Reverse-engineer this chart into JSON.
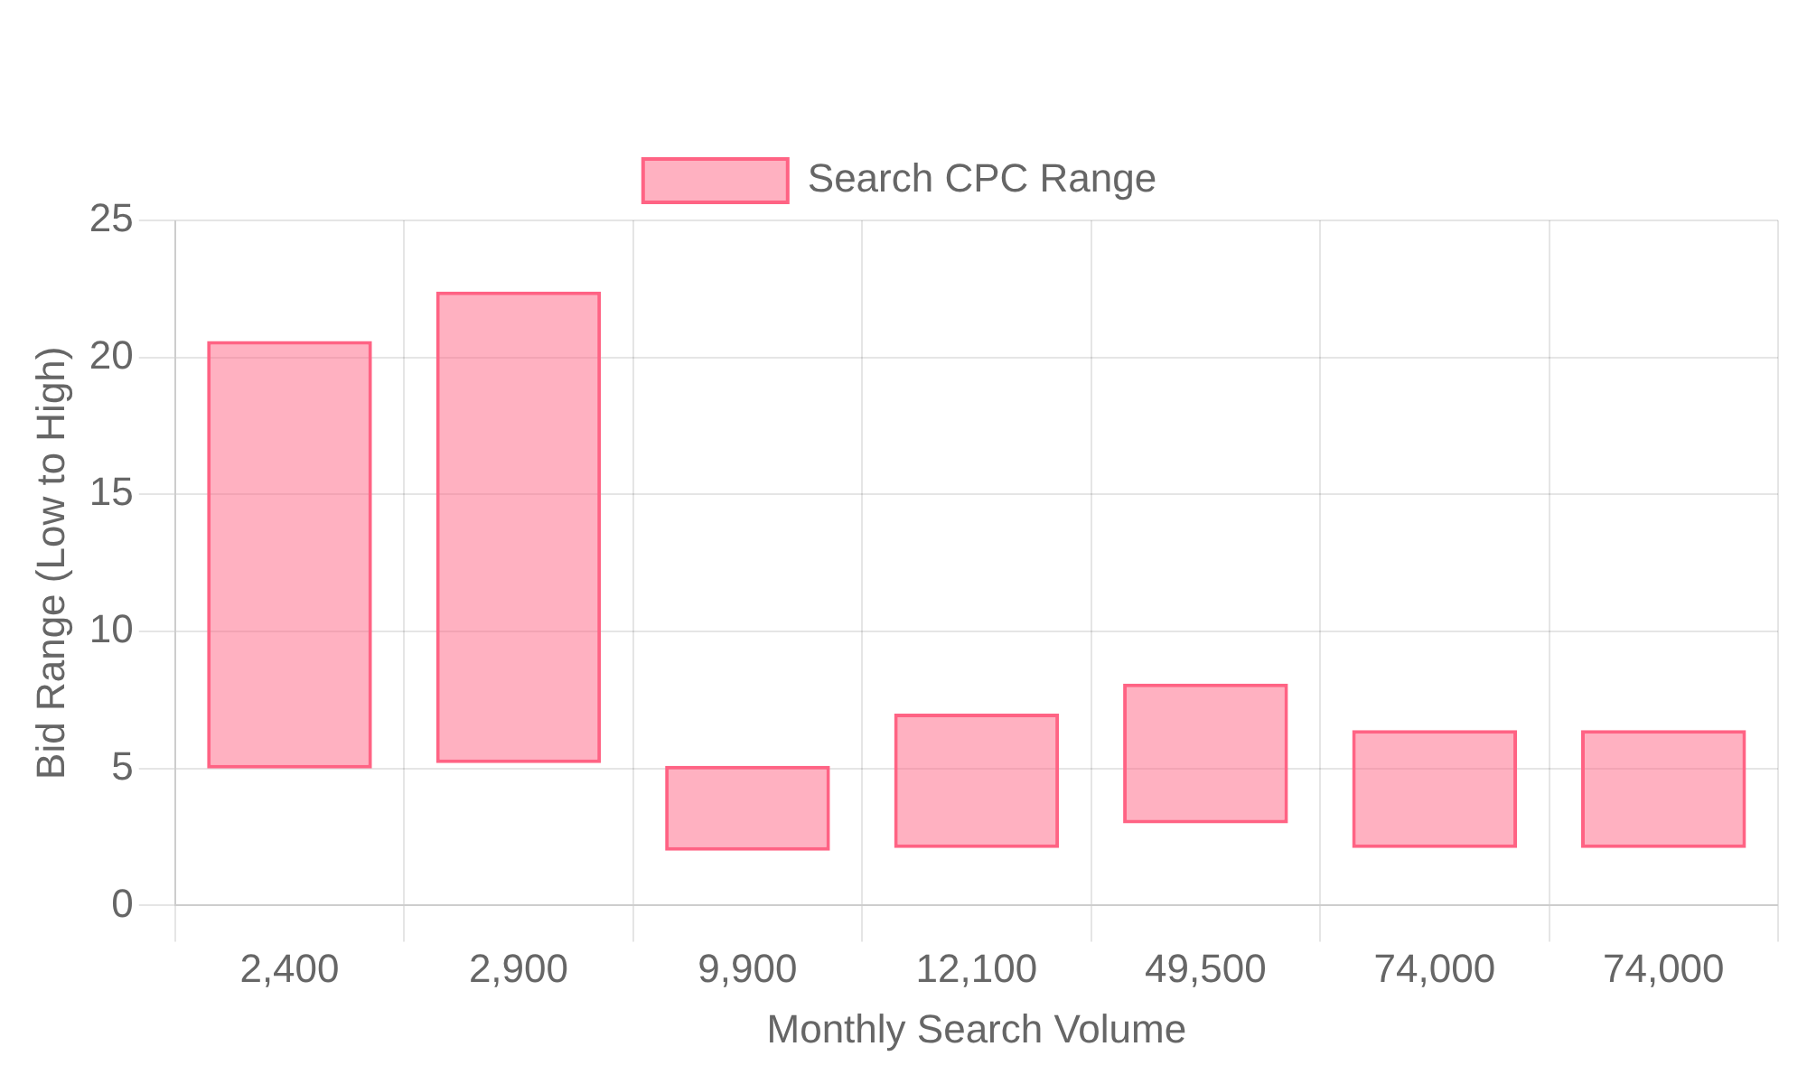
{
  "chart_data": {
    "type": "bar",
    "xlabel": "Monthly Search Volume",
    "ylabel": "Bid Range (Low to High)",
    "categories": [
      "2,400",
      "2,900",
      "9,900",
      "12,100",
      "49,500",
      "74,000",
      "74,000"
    ],
    "series": [
      {
        "name": "Search CPC Range",
        "color": "#ff6384",
        "values": [
          15.6,
          17.2,
          3.1,
          4.9,
          5.1,
          4.3,
          4.3
        ],
        "base": [
          5.0,
          5.2,
          2.0,
          2.1,
          3.0,
          2.1,
          2.1
        ]
      }
    ],
    "ylim": [
      0,
      25
    ],
    "yticks": [
      0,
      5,
      10,
      15,
      20,
      25
    ],
    "grid": true,
    "legend": "top"
  }
}
